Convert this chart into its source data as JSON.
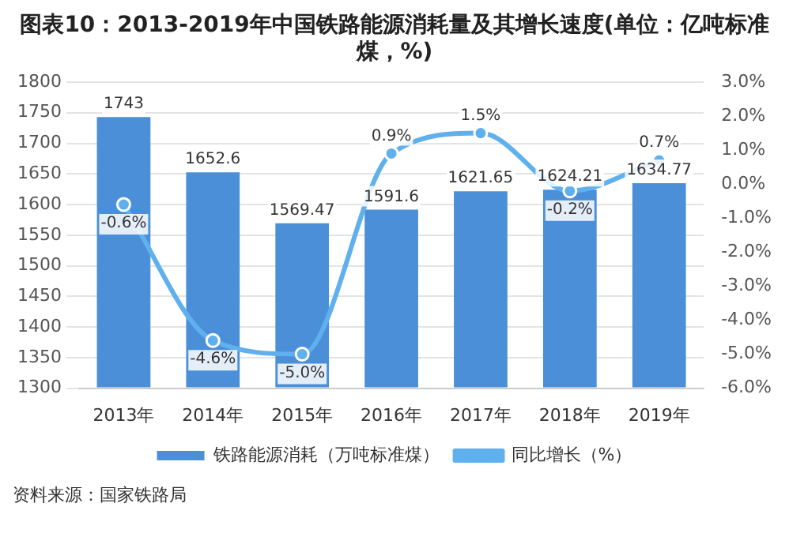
{
  "chart_data": {
    "type": "bar",
    "title": "图表10：2013-2019年中国铁路能源消耗量及其增长速度(单位：亿吨标准煤，%)",
    "categories": [
      "2013年",
      "2014年",
      "2015年",
      "2016年",
      "2017年",
      "2018年",
      "2019年"
    ],
    "series": [
      {
        "name": "铁路能源消耗（万吨标准煤）",
        "color": "#4a8fd8",
        "values": [
          1743,
          1652.6,
          1569.47,
          1591.6,
          1621.65,
          1624.21,
          1634.77
        ],
        "value_labels": [
          "1743",
          "1652.6",
          "1569.47",
          "1591.6",
          "1621.65",
          "1624.21",
          "1634.77"
        ]
      },
      {
        "name": "同比增长（%）",
        "type": "line",
        "axis": "y2",
        "color": "#5fb0ec",
        "marker": "circle",
        "values": [
          -0.6,
          -4.6,
          -5.0,
          0.9,
          1.5,
          -0.2,
          0.7
        ],
        "value_labels": [
          "-0.6%",
          "-4.6%",
          "-5.0%",
          "0.9%",
          "1.5%",
          "-0.2%",
          "0.7%"
        ]
      }
    ],
    "ylim": [
      1300,
      1800
    ],
    "yticks": [
      1300,
      1350,
      1400,
      1450,
      1500,
      1550,
      1600,
      1650,
      1700,
      1750,
      1800
    ],
    "y2lim": [
      -6,
      3
    ],
    "y2ticks": [
      {
        "value": -6,
        "label": "-6.0%"
      },
      {
        "value": -5,
        "label": "-5.0%"
      },
      {
        "value": -4,
        "label": "-4.0%"
      },
      {
        "value": -3,
        "label": "-3.0%"
      },
      {
        "value": -2,
        "label": "-2.0%"
      },
      {
        "value": -1,
        "label": "-1.0%"
      },
      {
        "value": 0,
        "label": "0.0%"
      },
      {
        "value": 1,
        "label": "1.0%"
      },
      {
        "value": 2,
        "label": "2.0%"
      },
      {
        "value": 3,
        "label": "3.0%"
      }
    ],
    "grid": "y",
    "legend": "bottom",
    "annotations": [
      "资料来源：国家铁路局"
    ]
  }
}
